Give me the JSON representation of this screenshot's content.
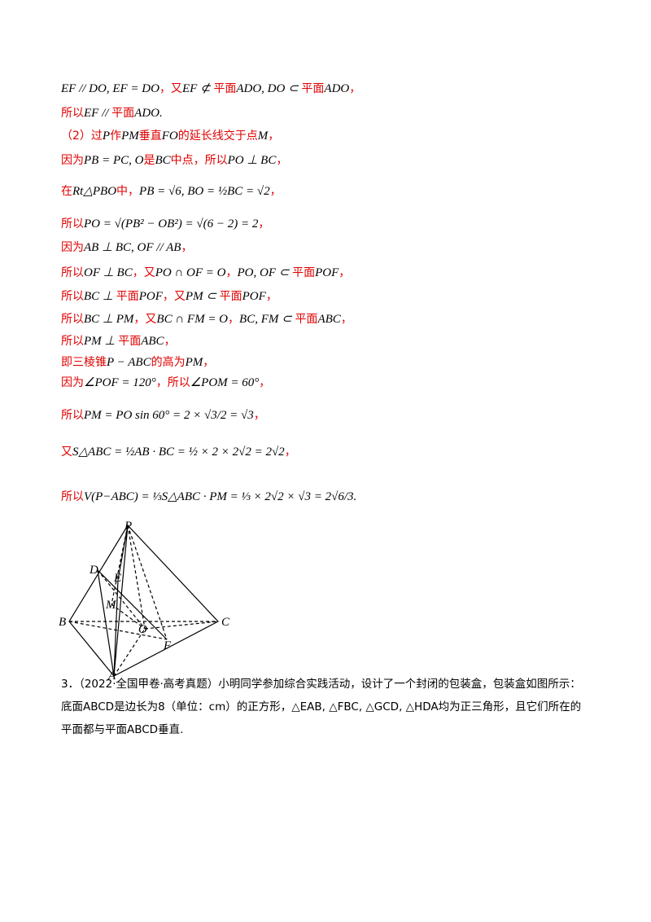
{
  "solution": {
    "lines": [
      [
        "EF // DO, EF = DO",
        "，又",
        "EF ⊄ ",
        "平面",
        "ADO, DO ⊂ ",
        "平面",
        "ADO",
        "，"
      ],
      [
        "所以",
        "EF // ",
        "平面",
        "ADO",
        "."
      ],
      [
        "（2）过",
        "P",
        "作",
        "PM",
        "垂直",
        "FO",
        "的延长线交于点",
        "M",
        "，"
      ],
      [
        "因为",
        "PB = PC, O",
        "是",
        "BC",
        "中点，所以",
        "PO ⊥ BC",
        "，"
      ],
      [
        "在",
        "Rt△PBO",
        "中，",
        "PB = √6, BO = ½BC = √2",
        "，"
      ],
      [
        "所以",
        "PO = √(PB² − OB²) = √(6 − 2) = 2",
        "，"
      ],
      [
        "因为",
        "AB ⊥ BC, OF // AB",
        "，"
      ],
      [
        "所以",
        "OF ⊥ BC",
        "，又",
        "PO ∩ OF = O",
        "，",
        "PO, OF ⊂ ",
        "平面",
        "POF",
        "，"
      ],
      [
        "所以",
        "BC ⊥ ",
        "平面",
        "POF",
        "，又",
        "PM ⊂ ",
        "平面",
        "POF",
        "，"
      ],
      [
        "所以",
        "BC ⊥ PM",
        "，又",
        "BC ∩ FM = O",
        "，",
        "BC, FM ⊂ ",
        "平面",
        "ABC",
        "，"
      ],
      [
        "所以",
        "PM ⊥ ",
        "平面",
        "ABC",
        "，"
      ],
      [
        "即三棱锥",
        "P − ABC",
        "的高为",
        "PM",
        "，"
      ],
      [
        "因为",
        "∠POF = 120°",
        "，所以",
        "∠POM = 60°",
        "，"
      ],
      [
        "所以",
        "PM = PO sin 60° = 2 × √3/2 = √3",
        "，"
      ],
      [
        "又",
        "S△ABC = ½AB · BC = ½ × 2 × 2√2 = 2√2",
        "，"
      ],
      [
        "所以",
        "V(P−ABC) = ⅓S△ABC · PM = ⅓ × 2√2 × √3 = 2√6/3",
        "."
      ]
    ]
  },
  "figure": {
    "labels": [
      "P",
      "D",
      "E",
      "M",
      "B",
      "O",
      "C",
      "A",
      "F"
    ]
  },
  "problem": {
    "lines": [
      "3．（2022·全国甲卷·高考真题）小明同学参加综合实践活动，设计了一个封闭的包装盒，包装盒如图所示：",
      "底面ABCD是边长为8（单位：cm）的正方形，△EAB, △FBC, △GCD, △HDA均为正三角形，且它们所在的",
      "平面都与平面ABCD垂直."
    ]
  }
}
